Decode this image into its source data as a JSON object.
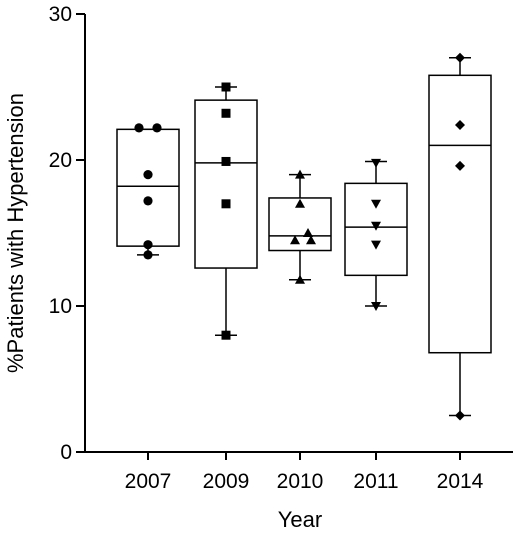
{
  "chart_data": {
    "type": "box",
    "xlabel": "Year",
    "ylabel": "%Patients with Hypertension",
    "ylim": [
      0,
      30
    ],
    "yticks": [
      0,
      10,
      20,
      30
    ],
    "categories": [
      "2007",
      "2009",
      "2010",
      "2011",
      "2014"
    ],
    "boxes": [
      {
        "category": "2007",
        "marker": "circle",
        "whisker_low": 13.5,
        "q1": 14.1,
        "median": 18.2,
        "q3": 22.1,
        "whisker_high": 22.1,
        "points": [
          22.2,
          22.2,
          19.0,
          17.2,
          14.2,
          13.5
        ]
      },
      {
        "category": "2009",
        "marker": "square",
        "whisker_low": 8.0,
        "q1": 12.6,
        "median": 19.8,
        "q3": 24.1,
        "whisker_high": 25.0,
        "points": [
          25.0,
          23.2,
          19.9,
          17.0,
          8.0
        ]
      },
      {
        "category": "2010",
        "marker": "triangle-up",
        "whisker_low": 11.8,
        "q1": 13.8,
        "median": 14.8,
        "q3": 17.4,
        "whisker_high": 19.0,
        "points": [
          19.0,
          17.0,
          15.0,
          14.5,
          14.5,
          11.8
        ]
      },
      {
        "category": "2011",
        "marker": "triangle-down",
        "whisker_low": 10.0,
        "q1": 12.1,
        "median": 15.4,
        "q3": 18.4,
        "whisker_high": 19.9,
        "points": [
          19.8,
          17.0,
          15.5,
          14.2,
          10.0
        ]
      },
      {
        "category": "2014",
        "marker": "diamond",
        "whisker_low": 2.5,
        "q1": 6.8,
        "median": 21.0,
        "q3": 25.8,
        "whisker_high": 27.0,
        "points": [
          27.0,
          22.4,
          19.6,
          2.5
        ]
      }
    ]
  }
}
